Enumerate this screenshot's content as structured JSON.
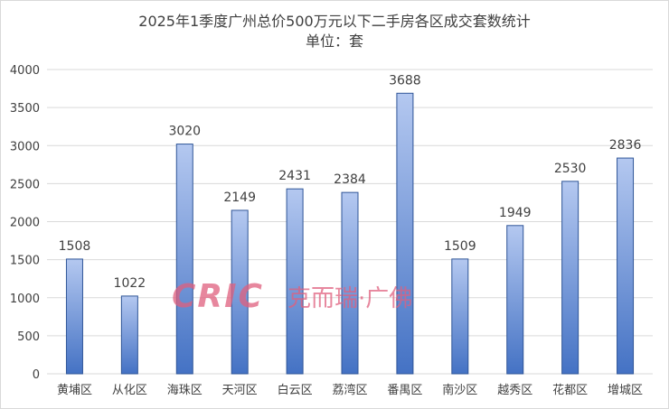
{
  "chart_data": {
    "type": "bar",
    "title": "2025年1季度广州总价500万元以下二手房各区成交套数统计",
    "subtitle": "单位：套",
    "categories": [
      "黄埔区",
      "从化区",
      "海珠区",
      "天河区",
      "白云区",
      "荔湾区",
      "番禺区",
      "南沙区",
      "越秀区",
      "花都区",
      "增城区"
    ],
    "values": [
      1508,
      1022,
      3020,
      2149,
      2431,
      2384,
      3688,
      1509,
      1949,
      2530,
      2836
    ],
    "ylim": [
      0,
      4000
    ],
    "yticks": [
      0,
      500,
      1000,
      1500,
      2000,
      2500,
      3000,
      3500,
      4000
    ],
    "grid": true,
    "data_labels": true,
    "colors": {
      "bar_top": "#b4c8f0",
      "bar_bottom": "#4472c4",
      "bar_border": "#2f5597",
      "grid": "#d9d9d9",
      "text": "#404040"
    }
  },
  "watermark": {
    "text": "CRIC 克而瑞·广佛",
    "color": "#e0607e"
  }
}
